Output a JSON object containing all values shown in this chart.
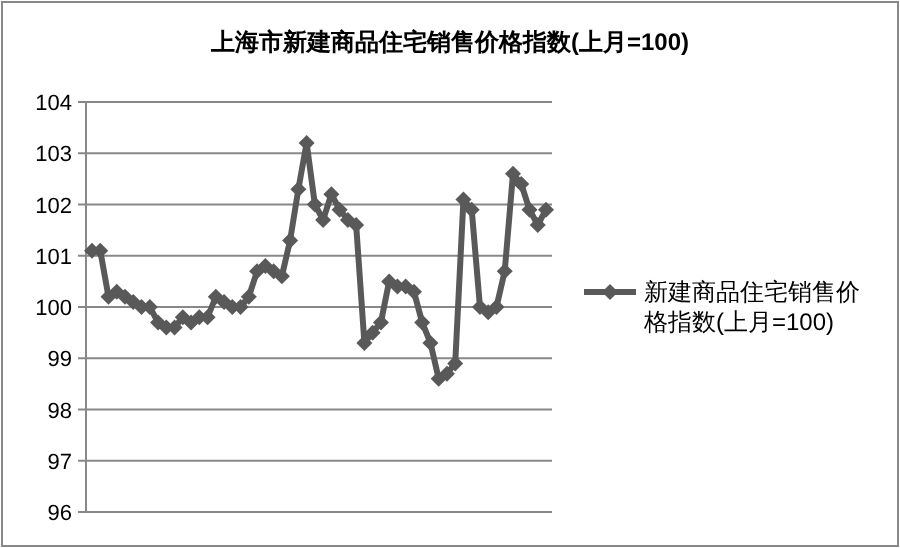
{
  "chart_data": {
    "type": "line",
    "title": "上海市新建商品住宅销售价格指数(上月=100)",
    "categories": [
      null,
      null,
      null,
      null,
      null,
      null,
      null,
      null,
      null,
      null,
      null,
      null,
      null,
      null,
      null,
      null,
      null,
      null,
      null,
      null,
      null,
      null,
      null,
      null,
      null,
      null,
      null,
      null,
      null,
      null,
      null,
      null,
      null,
      null,
      null,
      null,
      null,
      null,
      null,
      null,
      null,
      null,
      null,
      null,
      null,
      null,
      null,
      null,
      null,
      null,
      null,
      null,
      null,
      null,
      null,
      null
    ],
    "series": [
      {
        "name": "新建商品住宅销售价格指数(上月=100)",
        "color": "#595959",
        "values": [
          101.1,
          101.1,
          100.2,
          100.3,
          100.2,
          100.1,
          100.0,
          100.0,
          99.7,
          99.6,
          99.6,
          99.8,
          99.7,
          99.8,
          99.8,
          100.2,
          100.1,
          100.0,
          100.0,
          100.2,
          100.7,
          100.8,
          100.7,
          100.6,
          101.3,
          102.3,
          103.2,
          102.0,
          101.7,
          102.2,
          101.9,
          101.7,
          101.6,
          99.3,
          99.5,
          99.7,
          100.5,
          100.4,
          100.4,
          100.3,
          99.7,
          99.3,
          98.6,
          98.7,
          98.9,
          102.1,
          101.9,
          100.0,
          99.9,
          100.0,
          100.7,
          102.6,
          102.4,
          101.9,
          101.6,
          101.9
        ]
      }
    ],
    "ylim": [
      96,
      104
    ],
    "yticks": [
      96,
      97,
      98,
      99,
      100,
      101,
      102,
      103,
      104
    ],
    "grid": "y",
    "legend": "right",
    "marker": "diamond",
    "line_style": "solid",
    "tick_labels": "y"
  }
}
